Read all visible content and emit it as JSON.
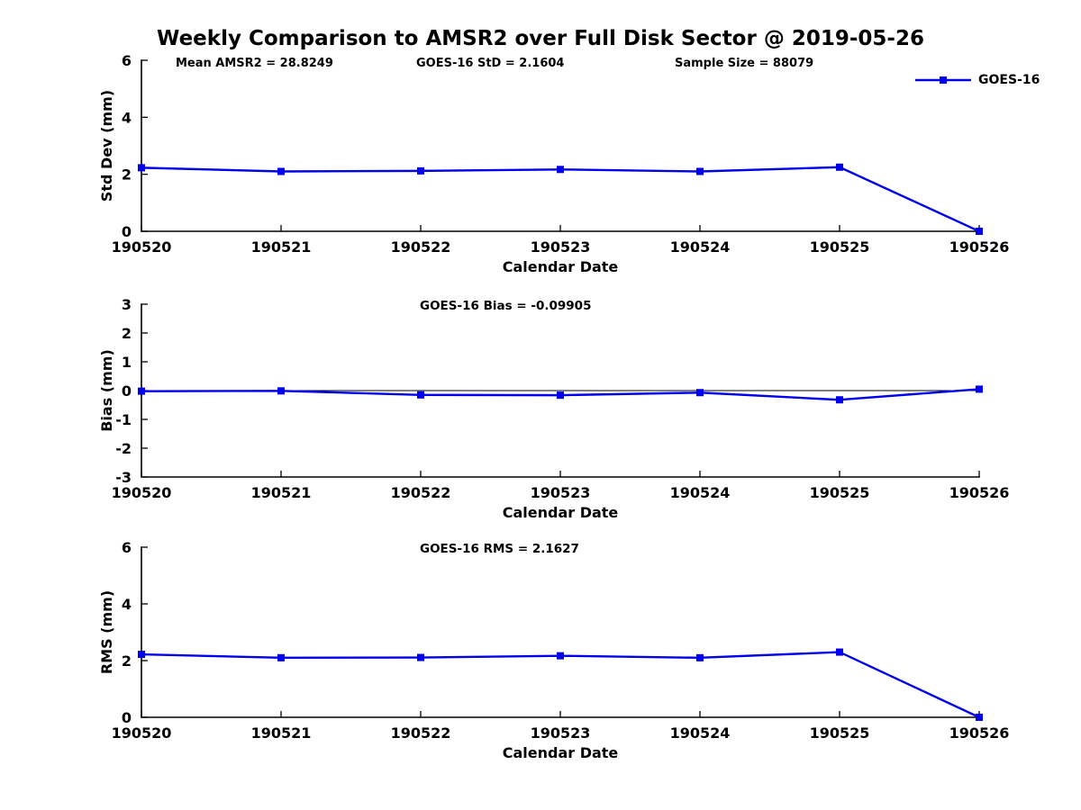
{
  "figure": {
    "title": "Weekly Comparison to AMSR2 over Full Disk Sector @ 2019-05-26",
    "annotations": [
      {
        "label": "Mean AMSR2 = 28.8249"
      },
      {
        "label": "GOES-16 StD = 2.1604"
      },
      {
        "label": "Sample Size = 88079"
      }
    ],
    "legend": {
      "label": "GOES-16"
    }
  },
  "colors": {
    "line": "#0000ee",
    "axis": "#000000",
    "text": "#000000"
  },
  "chart_data": [
    {
      "type": "line",
      "title": "",
      "ylabel": "Std Dev (mm)",
      "xlabel": "Calendar Date",
      "categories": [
        "190520",
        "190521",
        "190522",
        "190523",
        "190524",
        "190525",
        "190526"
      ],
      "series": [
        {
          "name": "GOES-16",
          "values": [
            2.23,
            2.1,
            2.12,
            2.17,
            2.1,
            2.25,
            0.0
          ]
        }
      ],
      "ylim": [
        0,
        6
      ],
      "yticks": [
        0,
        2,
        4,
        6
      ],
      "grid": false,
      "zero_line": false,
      "legend_position": "top-right",
      "marker": "square"
    },
    {
      "type": "line",
      "title": "GOES-16 Bias  = -0.09905",
      "ylabel": "Bias (mm)",
      "xlabel": "Calendar Date",
      "categories": [
        "190520",
        "190521",
        "190522",
        "190523",
        "190524",
        "190525",
        "190526"
      ],
      "series": [
        {
          "name": "GOES-16",
          "values": [
            -0.02,
            -0.01,
            -0.15,
            -0.16,
            -0.07,
            -0.32,
            0.05
          ]
        }
      ],
      "ylim": [
        -3,
        3
      ],
      "yticks": [
        -3,
        -2,
        -1,
        0,
        1,
        2,
        3
      ],
      "grid": false,
      "zero_line": true,
      "legend_position": "none",
      "marker": "square"
    },
    {
      "type": "line",
      "title": "GOES-16 RMS = 2.1627",
      "ylabel": "RMS (mm)",
      "xlabel": "Calendar Date",
      "categories": [
        "190520",
        "190521",
        "190522",
        "190523",
        "190524",
        "190525",
        "190526"
      ],
      "series": [
        {
          "name": "GOES-16",
          "values": [
            2.22,
            2.1,
            2.11,
            2.17,
            2.1,
            2.3,
            0.0
          ]
        }
      ],
      "ylim": [
        0,
        6
      ],
      "yticks": [
        0,
        2,
        4,
        6
      ],
      "grid": false,
      "zero_line": false,
      "legend_position": "none",
      "marker": "square"
    }
  ]
}
